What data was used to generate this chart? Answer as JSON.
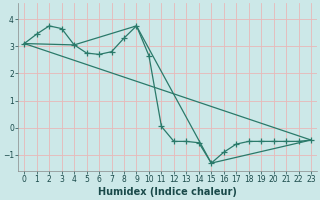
{
  "xlabel": "Humidex (Indice chaleur)",
  "bg_color": "#cce8e8",
  "line_color": "#2a7a6a",
  "grid_color": "#e8b8b8",
  "xlim": [
    -0.5,
    23.5
  ],
  "ylim": [
    -1.6,
    4.6
  ],
  "yticks": [
    -1,
    0,
    1,
    2,
    3,
    4
  ],
  "xticks": [
    0,
    1,
    2,
    3,
    4,
    5,
    6,
    7,
    8,
    9,
    10,
    11,
    12,
    13,
    14,
    15,
    16,
    17,
    18,
    19,
    20,
    21,
    22,
    23
  ],
  "line1_x": [
    0,
    1,
    2,
    3,
    4,
    5,
    6,
    7,
    8,
    9,
    10,
    11,
    12,
    13,
    14,
    15,
    16,
    17,
    18,
    19,
    20,
    21,
    22,
    23
  ],
  "line1_y": [
    3.1,
    3.45,
    3.75,
    3.65,
    3.05,
    2.75,
    2.7,
    2.8,
    3.3,
    3.75,
    2.65,
    0.05,
    -0.5,
    -0.5,
    -0.55,
    -1.3,
    -0.9,
    -0.6,
    -0.5,
    -0.5,
    -0.5,
    -0.5,
    -0.5,
    -0.45
  ],
  "line2_x": [
    0,
    23
  ],
  "line2_y": [
    3.1,
    -0.45
  ],
  "line3_x": [
    0,
    4,
    9,
    15,
    23
  ],
  "line3_y": [
    3.1,
    3.05,
    3.75,
    -1.3,
    -0.45
  ]
}
